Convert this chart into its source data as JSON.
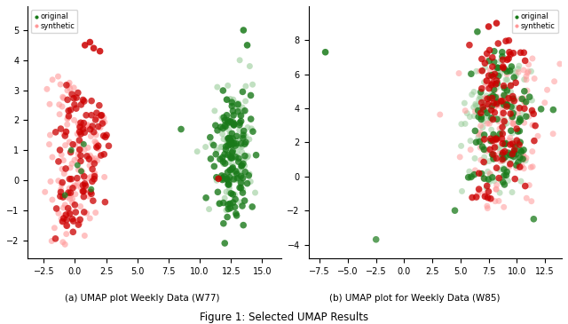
{
  "title": "Figure 1: Selected UMAP Results",
  "subplot1": {
    "label": "(a) UMAP plot Weekly Data (W77)",
    "xlim": [
      -3.8,
      16.5
    ],
    "ylim": [
      -2.6,
      5.8
    ],
    "xticks": [
      -2.5,
      0.0,
      2.5,
      5.0,
      7.5,
      10.0,
      12.5,
      15.0
    ],
    "yticks": [
      -2,
      -1,
      0,
      1,
      2,
      3,
      4,
      5
    ]
  },
  "subplot2": {
    "label": "(b) UMAP plot for Weekly Data (W85)",
    "xlim": [
      -8.5,
      14.0
    ],
    "ylim": [
      -4.8,
      10.0
    ],
    "xticks": [
      -7.5,
      -5.0,
      -2.5,
      0.0,
      2.5,
      5.0,
      7.5,
      10.0,
      12.5
    ],
    "yticks": [
      -4,
      -2,
      0,
      2,
      4,
      6,
      8
    ]
  },
  "marker_size": 25,
  "dark_red": "#cc0000",
  "light_red": "#ff9999",
  "dark_green": "#1a7a1a",
  "light_green": "#99cc99"
}
